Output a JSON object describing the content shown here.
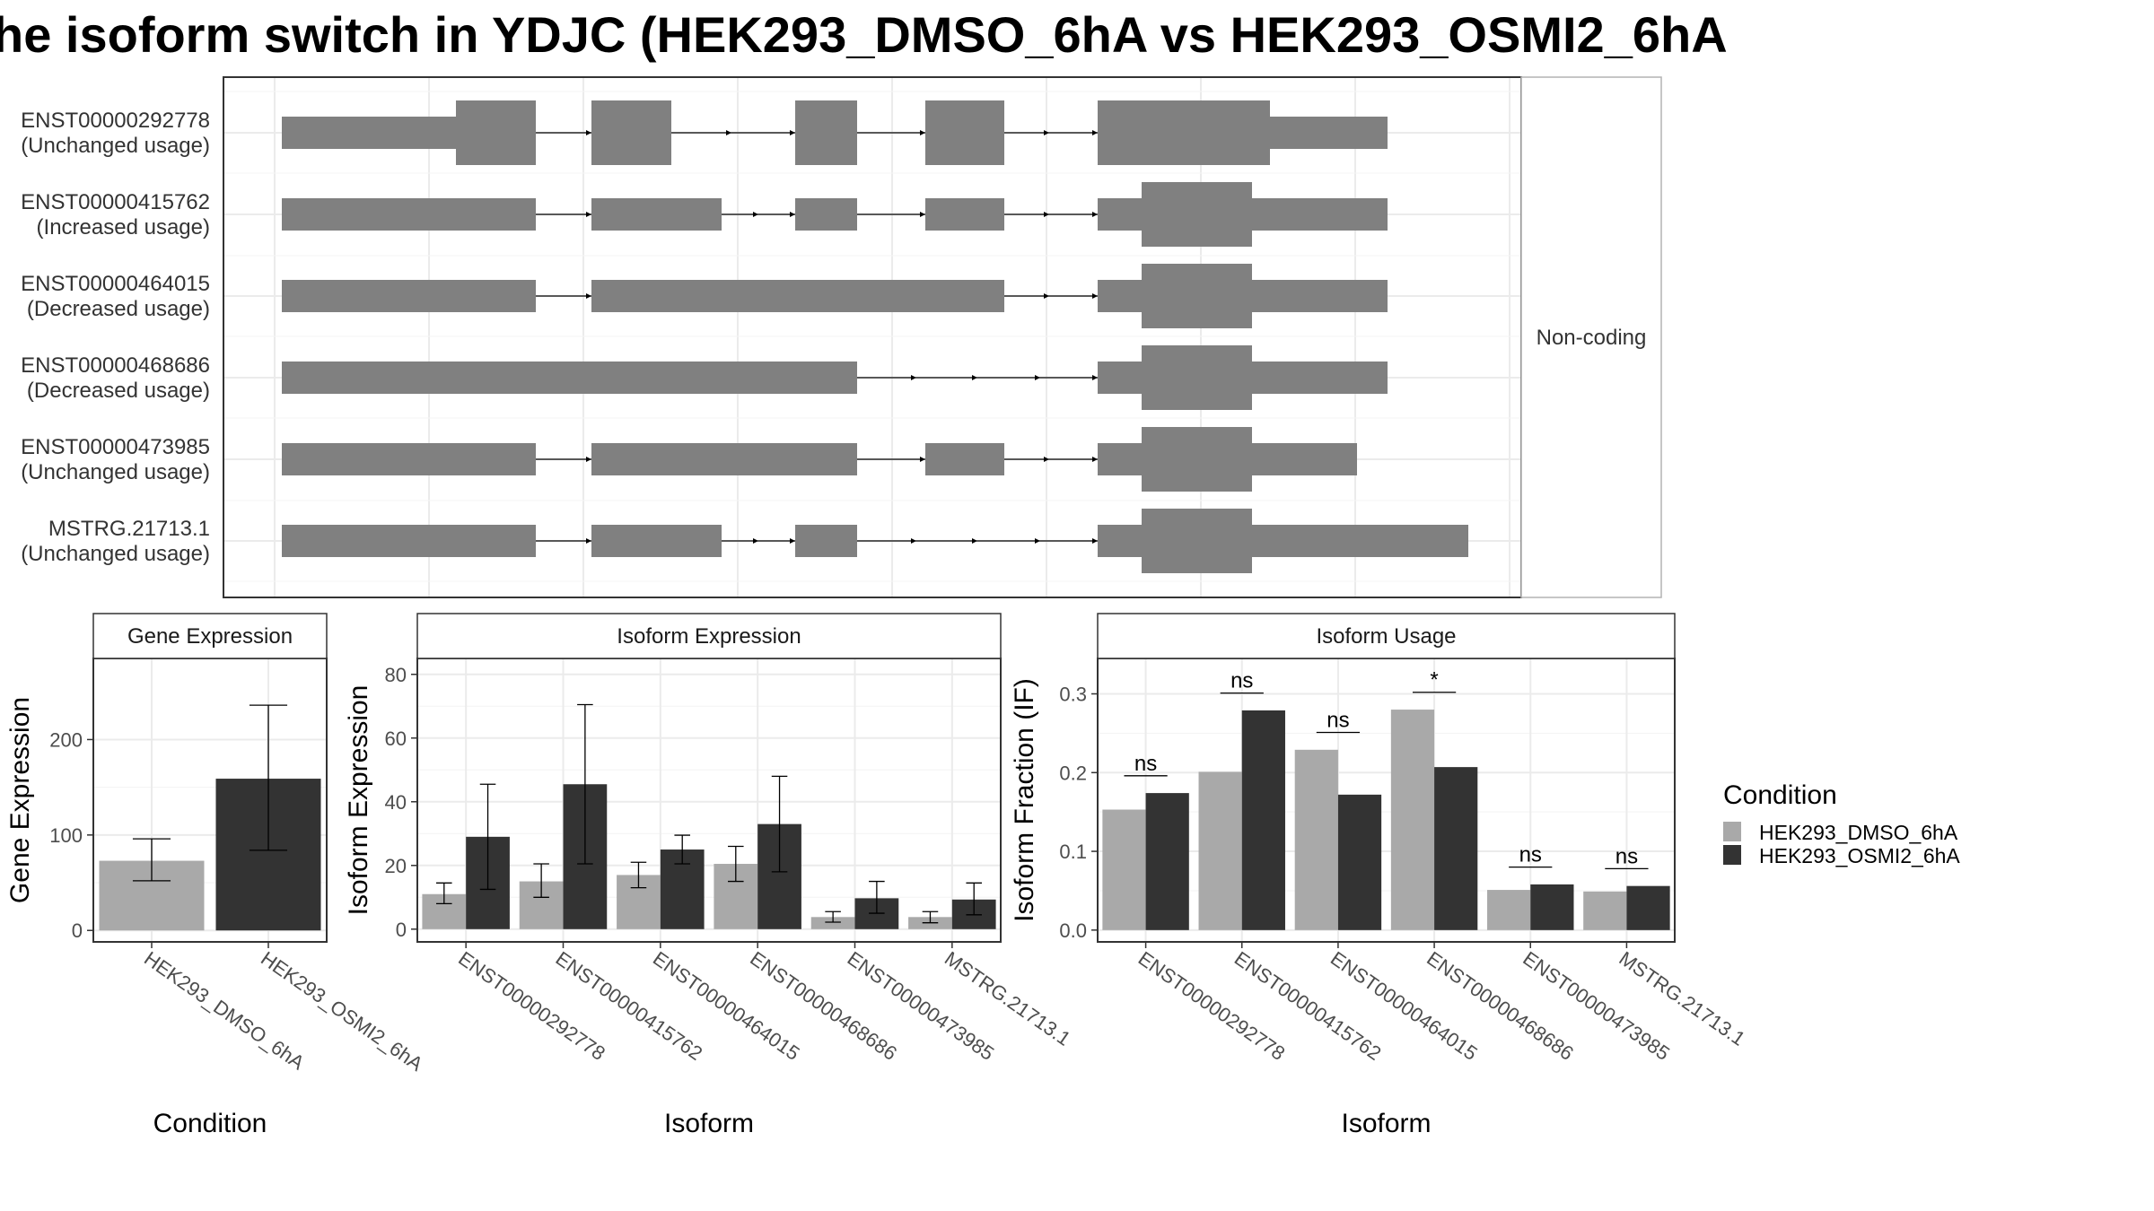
{
  "title": "he isoform switch in YDJC (HEK293_DMSO_6hA vs HEK293_OSMI2_6hA",
  "colors": {
    "dmso": "#a9a9a9",
    "osmi": "#333333",
    "exon": "#808080",
    "grid": "#ebebeb",
    "panel_border": "#333333"
  },
  "structure": {
    "facet_label": "Non-coding",
    "transcripts": [
      {
        "id": "ENST00000292778",
        "usage": "(Unchanged usage)"
      },
      {
        "id": "ENST00000415762",
        "usage": "(Increased usage)"
      },
      {
        "id": "ENST00000464015",
        "usage": "(Decreased usage)"
      },
      {
        "id": "ENST00000468686",
        "usage": "(Decreased usage)"
      },
      {
        "id": "ENST00000473985",
        "usage": "(Unchanged usage)"
      },
      {
        "id": "MSTRG.21713.1",
        "usage": "(Unchanged usage)"
      }
    ]
  },
  "legend": {
    "title": "Condition",
    "items": [
      "HEK293_DMSO_6hA",
      "HEK293_OSMI2_6hA"
    ]
  },
  "chart_data": [
    {
      "type": "bar",
      "title": "Gene Expression",
      "xlabel": "Condition",
      "ylabel": "Gene Expression",
      "categories": [
        "HEK293_DMSO_6hA",
        "HEK293_OSMI2_6hA"
      ],
      "values": [
        73,
        159
      ],
      "errors": [
        [
          52,
          96
        ],
        [
          84,
          236
        ]
      ],
      "ylim": [
        -12,
        285
      ],
      "yticks": [
        0,
        100,
        200
      ]
    },
    {
      "type": "bar",
      "title": "Isoform Expression",
      "xlabel": "Isoform",
      "ylabel": "Isoform Expression",
      "categories": [
        "ENST00000292778",
        "ENST00000415762",
        "ENST00000464015",
        "ENST00000468686",
        "ENST00000473985",
        "MSTRG.21713.1"
      ],
      "series": [
        {
          "name": "HEK293_DMSO_6hA",
          "values": [
            11,
            15,
            17,
            20.5,
            3.8,
            3.8
          ],
          "errors": [
            [
              8,
              14.5
            ],
            [
              10,
              20.5
            ],
            [
              13,
              21
            ],
            [
              15,
              26
            ],
            [
              2.2,
              5.5
            ],
            [
              2,
              5.5
            ]
          ]
        },
        {
          "name": "HEK293_OSMI2_6hA",
          "values": [
            29,
            45.5,
            25,
            33,
            9.7,
            9.3
          ],
          "errors": [
            [
              12.5,
              45.5
            ],
            [
              20.5,
              70.5
            ],
            [
              20.5,
              29.5
            ],
            [
              18,
              48
            ],
            [
              5,
              15
            ],
            [
              4.5,
              14.5
            ]
          ]
        }
      ],
      "ylim": [
        -4,
        85
      ],
      "yticks": [
        0,
        20,
        40,
        60,
        80
      ]
    },
    {
      "type": "bar",
      "title": "Isoform Usage",
      "xlabel": "Isoform",
      "ylabel": "Isoform Fraction (IF)",
      "categories": [
        "ENST00000292778",
        "ENST00000415762",
        "ENST00000464015",
        "ENST00000468686",
        "ENST00000473985",
        "MSTRG.21713.1"
      ],
      "series": [
        {
          "name": "HEK293_DMSO_6hA",
          "values": [
            0.153,
            0.201,
            0.229,
            0.28,
            0.051,
            0.049
          ]
        },
        {
          "name": "HEK293_OSMI2_6hA",
          "values": [
            0.174,
            0.279,
            0.172,
            0.207,
            0.058,
            0.056
          ]
        }
      ],
      "significance": [
        "ns",
        "ns",
        "ns",
        "*",
        "ns",
        "ns"
      ],
      "ylim": [
        -0.015,
        0.345
      ],
      "yticks": [
        0.0,
        0.1,
        0.2,
        0.3
      ],
      "ytick_labels": [
        "0.0",
        "0.1",
        "0.2",
        "0.3"
      ]
    }
  ]
}
